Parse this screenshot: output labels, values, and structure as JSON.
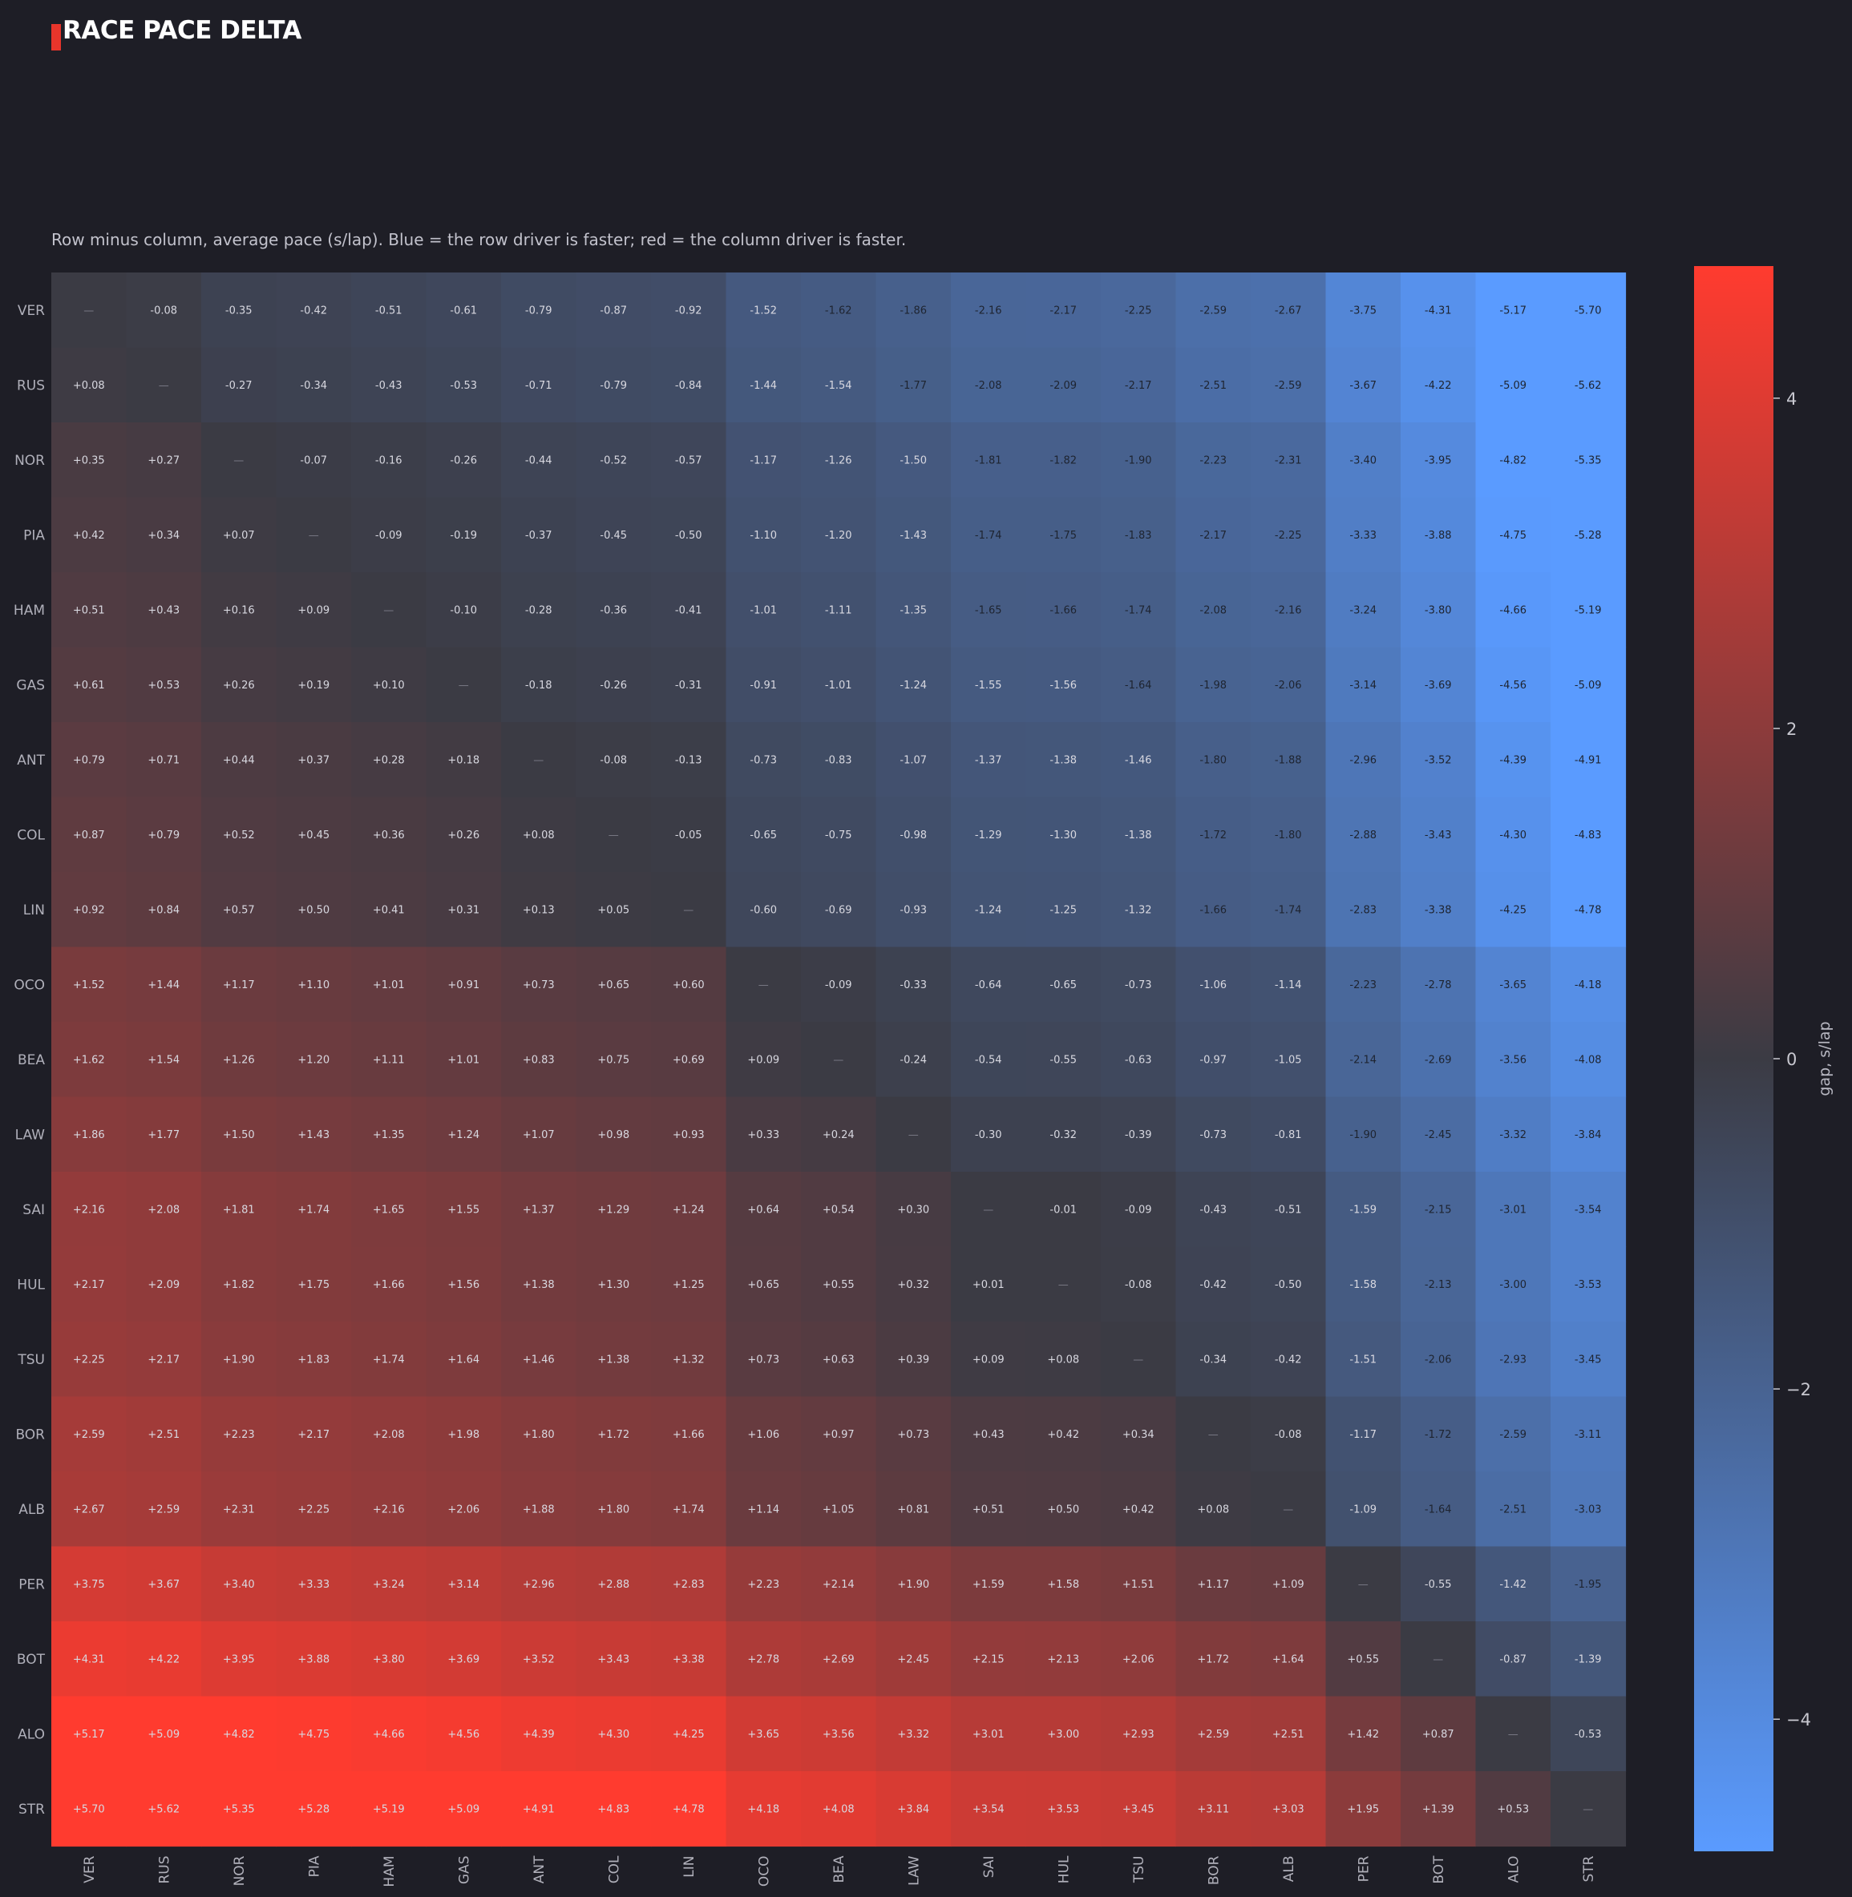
{
  "header": {
    "title": "RACE PACE DELTA",
    "subtitle": "Row minus column, average pace (s/lap). Blue = the row driver is faster; red = the column driver is faster.",
    "accent_color": "#e8352b"
  },
  "chart_data": {
    "type": "heatmap",
    "drivers": [
      "VER",
      "RUS",
      "NOR",
      "PIA",
      "HAM",
      "GAS",
      "ANT",
      "COL",
      "LIN",
      "OCO",
      "BEA",
      "LAW",
      "SAI",
      "HUL",
      "TSU",
      "BOR",
      "ALB",
      "PER",
      "BOT",
      "ALO",
      "STR"
    ],
    "pace_offsets": [
      0,
      0.08,
      0.35,
      0.42,
      0.51,
      0.61,
      0.79,
      0.87,
      0.92,
      1.52,
      1.62,
      1.86,
      2.16,
      2.17,
      2.25,
      2.59,
      2.67,
      3.75,
      4.31,
      5.17,
      5.7
    ],
    "values": [
      [
        "—",
        "-0.08",
        "-0.35",
        "-0.42",
        "-0.51",
        "-0.61",
        "-0.79",
        "-0.87",
        "-0.92",
        "-1.52",
        "-1.62",
        "-1.86",
        "-2.16",
        "-2.17",
        "-2.25",
        "-2.59",
        "-2.67",
        "-3.75",
        "-4.31",
        "-5.17",
        "-5.70"
      ],
      [
        "+0.08",
        "—",
        "-0.27",
        "-0.34",
        "-0.43",
        "-0.53",
        "-0.71",
        "-0.79",
        "-0.84",
        "-1.44",
        "-1.54",
        "-1.77",
        "-2.08",
        "-2.09",
        "-2.17",
        "-2.51",
        "-2.59",
        "-3.67",
        "-4.22",
        "-5.09",
        "-5.62"
      ],
      [
        "+0.35",
        "+0.27",
        "—",
        "-0.07",
        "-0.16",
        "-0.26",
        "-0.44",
        "-0.52",
        "-0.57",
        "-1.17",
        "-1.26",
        "-1.50",
        "-1.81",
        "-1.82",
        "-1.90",
        "-2.23",
        "-2.31",
        "-3.40",
        "-3.95",
        "-4.82",
        "-5.35"
      ],
      [
        "+0.42",
        "+0.34",
        "+0.07",
        "—",
        "-0.09",
        "-0.19",
        "-0.37",
        "-0.45",
        "-0.50",
        "-1.10",
        "-1.20",
        "-1.43",
        "-1.74",
        "-1.75",
        "-1.83",
        "-2.17",
        "-2.25",
        "-3.33",
        "-3.88",
        "-4.75",
        "-5.28"
      ],
      [
        "+0.51",
        "+0.43",
        "+0.16",
        "+0.09",
        "—",
        "-0.10",
        "-0.28",
        "-0.36",
        "-0.41",
        "-1.01",
        "-1.11",
        "-1.35",
        "-1.65",
        "-1.66",
        "-1.74",
        "-2.08",
        "-2.16",
        "-3.24",
        "-3.80",
        "-4.66",
        "-5.19"
      ],
      [
        "+0.61",
        "+0.53",
        "+0.26",
        "+0.19",
        "+0.10",
        "—",
        "-0.18",
        "-0.26",
        "-0.31",
        "-0.91",
        "-1.01",
        "-1.24",
        "-1.55",
        "-1.56",
        "-1.64",
        "-1.98",
        "-2.06",
        "-3.14",
        "-3.69",
        "-4.56",
        "-5.09"
      ],
      [
        "+0.79",
        "+0.71",
        "+0.44",
        "+0.37",
        "+0.28",
        "+0.18",
        "—",
        "-0.08",
        "-0.13",
        "-0.73",
        "-0.83",
        "-1.07",
        "-1.37",
        "-1.38",
        "-1.46",
        "-1.80",
        "-1.88",
        "-2.96",
        "-3.52",
        "-4.39",
        "-4.91"
      ],
      [
        "+0.87",
        "+0.79",
        "+0.52",
        "+0.45",
        "+0.36",
        "+0.26",
        "+0.08",
        "—",
        "-0.05",
        "-0.65",
        "-0.75",
        "-0.98",
        "-1.29",
        "-1.30",
        "-1.38",
        "-1.72",
        "-1.80",
        "-2.88",
        "-3.43",
        "-4.30",
        "-4.83"
      ],
      [
        "+0.92",
        "+0.84",
        "+0.57",
        "+0.50",
        "+0.41",
        "+0.31",
        "+0.13",
        "+0.05",
        "—",
        "-0.60",
        "-0.69",
        "-0.93",
        "-1.24",
        "-1.25",
        "-1.32",
        "-1.66",
        "-1.74",
        "-2.83",
        "-3.38",
        "-4.25",
        "-4.78"
      ],
      [
        "+1.52",
        "+1.44",
        "+1.17",
        "+1.10",
        "+1.01",
        "+0.91",
        "+0.73",
        "+0.65",
        "+0.60",
        "—",
        "-0.09",
        "-0.33",
        "-0.64",
        "-0.65",
        "-0.73",
        "-1.06",
        "-1.14",
        "-2.23",
        "-2.78",
        "-3.65",
        "-4.18"
      ],
      [
        "+1.62",
        "+1.54",
        "+1.26",
        "+1.20",
        "+1.11",
        "+1.01",
        "+0.83",
        "+0.75",
        "+0.69",
        "+0.09",
        "—",
        "-0.24",
        "-0.54",
        "-0.55",
        "-0.63",
        "-0.97",
        "-1.05",
        "-2.14",
        "-2.69",
        "-3.56",
        "-4.08"
      ],
      [
        "+1.86",
        "+1.77",
        "+1.50",
        "+1.43",
        "+1.35",
        "+1.24",
        "+1.07",
        "+0.98",
        "+0.93",
        "+0.33",
        "+0.24",
        "—",
        "-0.30",
        "-0.32",
        "-0.39",
        "-0.73",
        "-0.81",
        "-1.90",
        "-2.45",
        "-3.32",
        "-3.84"
      ],
      [
        "+2.16",
        "+2.08",
        "+1.81",
        "+1.74",
        "+1.65",
        "+1.55",
        "+1.37",
        "+1.29",
        "+1.24",
        "+0.64",
        "+0.54",
        "+0.30",
        "—",
        "-0.01",
        "-0.09",
        "-0.43",
        "-0.51",
        "-1.59",
        "-2.15",
        "-3.01",
        "-3.54"
      ],
      [
        "+2.17",
        "+2.09",
        "+1.82",
        "+1.75",
        "+1.66",
        "+1.56",
        "+1.38",
        "+1.30",
        "+1.25",
        "+0.65",
        "+0.55",
        "+0.32",
        "+0.01",
        "—",
        "-0.08",
        "-0.42",
        "-0.50",
        "-1.58",
        "-2.13",
        "-3.00",
        "-3.53"
      ],
      [
        "+2.25",
        "+2.17",
        "+1.90",
        "+1.83",
        "+1.74",
        "+1.64",
        "+1.46",
        "+1.38",
        "+1.32",
        "+0.73",
        "+0.63",
        "+0.39",
        "+0.09",
        "+0.08",
        "—",
        "-0.34",
        "-0.42",
        "-1.51",
        "-2.06",
        "-2.93",
        "-3.45"
      ],
      [
        "+2.59",
        "+2.51",
        "+2.23",
        "+2.17",
        "+2.08",
        "+1.98",
        "+1.80",
        "+1.72",
        "+1.66",
        "+1.06",
        "+0.97",
        "+0.73",
        "+0.43",
        "+0.42",
        "+0.34",
        "—",
        "-0.08",
        "-1.17",
        "-1.72",
        "-2.59",
        "-3.11"
      ],
      [
        "+2.67",
        "+2.59",
        "+2.31",
        "+2.25",
        "+2.16",
        "+2.06",
        "+1.88",
        "+1.80",
        "+1.74",
        "+1.14",
        "+1.05",
        "+0.81",
        "+0.51",
        "+0.50",
        "+0.42",
        "+0.08",
        "—",
        "-1.09",
        "-1.64",
        "-2.51",
        "-3.03"
      ],
      [
        "+3.75",
        "+3.67",
        "+3.40",
        "+3.33",
        "+3.24",
        "+3.14",
        "+2.96",
        "+2.88",
        "+2.83",
        "+2.23",
        "+2.14",
        "+1.90",
        "+1.59",
        "+1.58",
        "+1.51",
        "+1.17",
        "+1.09",
        "—",
        "-0.55",
        "-1.42",
        "-1.95"
      ],
      [
        "+4.31",
        "+4.22",
        "+3.95",
        "+3.88",
        "+3.80",
        "+3.69",
        "+3.52",
        "+3.43",
        "+3.38",
        "+2.78",
        "+2.69",
        "+2.45",
        "+2.15",
        "+2.13",
        "+2.06",
        "+1.72",
        "+1.64",
        "+0.55",
        "—",
        "-0.87",
        "-1.39"
      ],
      [
        "+5.17",
        "+5.09",
        "+4.82",
        "+4.75",
        "+4.66",
        "+4.56",
        "+4.39",
        "+4.30",
        "+4.25",
        "+3.65",
        "+3.56",
        "+3.32",
        "+3.01",
        "+3.00",
        "+2.93",
        "+2.59",
        "+2.51",
        "+1.42",
        "+0.87",
        "—",
        "-0.53"
      ],
      [
        "+5.70",
        "+5.62",
        "+5.35",
        "+5.28",
        "+5.19",
        "+5.09",
        "+4.91",
        "+4.83",
        "+4.78",
        "+4.18",
        "+4.08",
        "+3.84",
        "+3.54",
        "+3.53",
        "+3.45",
        "+3.11",
        "+3.03",
        "+1.95",
        "+1.39",
        "+0.53",
        "—"
      ]
    ],
    "color_range": [
      -4.8,
      4.8
    ],
    "colorbar": {
      "label": "gap, s/lap",
      "ticks": [
        4,
        2,
        0,
        -2,
        -4
      ],
      "tick_labels": [
        "4",
        "2",
        "0",
        "−2",
        "−4"
      ]
    },
    "colors": {
      "negative": "#5a9bff",
      "neutral": "#3b3b44",
      "positive": "#ff3b2f",
      "background": "#1e1e26"
    }
  }
}
